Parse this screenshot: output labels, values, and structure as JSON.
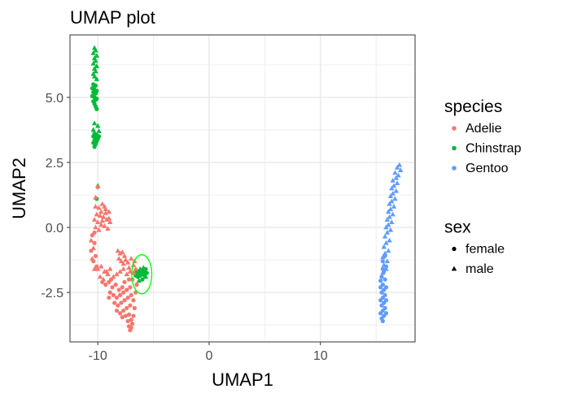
{
  "chart_data": {
    "type": "scatter",
    "title": "UMAP plot",
    "xlabel": "UMAP1",
    "ylabel": "UMAP2",
    "xlim": [
      -12.5,
      18.5
    ],
    "ylim": [
      -4.4,
      7.4
    ],
    "x_ticks": [
      {
        "value": -10,
        "label": "-10"
      },
      {
        "value": 0,
        "label": "0"
      },
      {
        "value": 10,
        "label": "10"
      }
    ],
    "y_ticks": [
      {
        "value": -2.5,
        "label": "-2.5"
      },
      {
        "value": 0,
        "label": "0.0"
      },
      {
        "value": 2.5,
        "label": "2.5"
      },
      {
        "value": 5,
        "label": "5.0"
      }
    ],
    "grid": true,
    "legend_position": "right",
    "colors": {
      "Adelie": "#F8766D",
      "Chinstrap": "#00BA38",
      "Gentoo": "#619CFF"
    },
    "legends": [
      {
        "title": "species",
        "kind": "color",
        "items": [
          "Adelie",
          "Chinstrap",
          "Gentoo"
        ]
      },
      {
        "title": "sex",
        "kind": "shape",
        "items": [
          {
            "label": "female",
            "shape": "circle"
          },
          {
            "label": "male",
            "shape": "triangle"
          }
        ]
      }
    ],
    "series": [
      {
        "species": "Chinstrap",
        "points": [
          [
            -10.3,
            6.9,
            "m"
          ],
          [
            -10.2,
            6.8,
            "m"
          ],
          [
            -10.4,
            6.7,
            "m"
          ],
          [
            -10.1,
            6.6,
            "m"
          ],
          [
            -10.3,
            6.5,
            "m"
          ],
          [
            -10.2,
            6.4,
            "m"
          ],
          [
            -10.4,
            6.3,
            "m"
          ],
          [
            -10.1,
            6.2,
            "m"
          ],
          [
            -10.3,
            6.1,
            "m"
          ],
          [
            -10.2,
            6.0,
            "m"
          ],
          [
            -10.4,
            5.9,
            "m"
          ],
          [
            -10.3,
            5.8,
            "m"
          ],
          [
            -10.1,
            5.7,
            "m"
          ],
          [
            -10.4,
            5.5,
            "f"
          ],
          [
            -10.2,
            5.45,
            "f"
          ],
          [
            -10.5,
            5.35,
            "f"
          ],
          [
            -10.3,
            5.3,
            "f"
          ],
          [
            -10.1,
            5.25,
            "f"
          ],
          [
            -10.4,
            5.2,
            "f"
          ],
          [
            -10.2,
            5.15,
            "f"
          ],
          [
            -10.5,
            5.05,
            "f"
          ],
          [
            -10.3,
            5.0,
            "f"
          ],
          [
            -10.1,
            4.95,
            "f"
          ],
          [
            -10.2,
            4.9,
            "f"
          ],
          [
            -10.4,
            4.85,
            "f"
          ],
          [
            -10.3,
            4.75,
            "f"
          ],
          [
            -10.2,
            4.65,
            "f"
          ],
          [
            -10.1,
            4.55,
            "f"
          ],
          [
            -10.3,
            4.0,
            "m"
          ],
          [
            -10.0,
            3.9,
            "m"
          ],
          [
            -10.4,
            3.75,
            "m"
          ],
          [
            -9.9,
            3.7,
            "m"
          ],
          [
            -10.3,
            3.6,
            "f"
          ],
          [
            -10.1,
            3.55,
            "f"
          ],
          [
            -10.4,
            3.5,
            "f"
          ],
          [
            -9.9,
            3.5,
            "f"
          ],
          [
            -10.2,
            3.45,
            "f"
          ],
          [
            -10.0,
            3.4,
            "f"
          ],
          [
            -10.3,
            3.35,
            "f"
          ],
          [
            -10.1,
            3.3,
            "f"
          ],
          [
            -10.4,
            3.25,
            "f"
          ],
          [
            -10.2,
            3.2,
            "f"
          ],
          [
            -10.3,
            3.1,
            "f"
          ],
          [
            -10.0,
            1.6,
            "m"
          ],
          [
            -10.1,
            1.1,
            "f"
          ],
          [
            -6.5,
            -1.7,
            "f"
          ],
          [
            -6.3,
            -1.75,
            "f"
          ],
          [
            -6.1,
            -1.65,
            "f"
          ],
          [
            -5.9,
            -1.7,
            "f"
          ],
          [
            -6.0,
            -1.8,
            "f"
          ],
          [
            -6.2,
            -1.85,
            "f"
          ],
          [
            -5.8,
            -1.85,
            "f"
          ],
          [
            -5.7,
            -1.6,
            "f"
          ],
          [
            -6.4,
            -1.9,
            "f"
          ],
          [
            -6.6,
            -1.85,
            "f"
          ],
          [
            -5.6,
            -1.75,
            "f"
          ],
          [
            -6.0,
            -2.0,
            "f"
          ],
          [
            -5.9,
            -1.55,
            "m"
          ],
          [
            -6.2,
            -1.6,
            "m"
          ],
          [
            -6.5,
            -1.65,
            "m"
          ],
          [
            -5.7,
            -1.9,
            "m"
          ],
          [
            -6.3,
            -2.05,
            "m"
          ]
        ]
      },
      {
        "species": "Adelie",
        "points": [
          [
            -10.0,
            1.55,
            "f"
          ],
          [
            -10.2,
            1.15,
            "m"
          ],
          [
            -10.2,
            0.8,
            "m"
          ],
          [
            -9.9,
            0.75,
            "m"
          ],
          [
            -9.6,
            0.9,
            "m"
          ],
          [
            -9.3,
            0.7,
            "m"
          ],
          [
            -9.0,
            0.6,
            "m"
          ],
          [
            -10.1,
            0.5,
            "m"
          ],
          [
            -9.8,
            0.45,
            "m"
          ],
          [
            -9.5,
            0.4,
            "m"
          ],
          [
            -9.2,
            0.3,
            "m"
          ],
          [
            -8.9,
            0.2,
            "m"
          ],
          [
            -10.3,
            0.3,
            "m"
          ],
          [
            -10.0,
            0.2,
            "m"
          ],
          [
            -9.7,
            0.1,
            "m"
          ],
          [
            -9.4,
            0.05,
            "m"
          ],
          [
            -9.1,
            -0.05,
            "m"
          ],
          [
            -10.2,
            0.0,
            "m"
          ],
          [
            -9.9,
            -0.1,
            "m"
          ],
          [
            -9.6,
            0.25,
            "m"
          ],
          [
            -9.3,
            0.55,
            "m"
          ],
          [
            -9.0,
            0.35,
            "m"
          ],
          [
            -9.4,
            0.8,
            "m"
          ],
          [
            -9.7,
            0.6,
            "m"
          ],
          [
            -10.5,
            -0.3,
            "f"
          ],
          [
            -10.3,
            -0.6,
            "f"
          ],
          [
            -10.6,
            -0.9,
            "f"
          ],
          [
            -10.2,
            -1.1,
            "f"
          ],
          [
            -10.4,
            -1.3,
            "f"
          ],
          [
            -10.1,
            -1.5,
            "f"
          ],
          [
            -10.3,
            -0.2,
            "f"
          ],
          [
            -10.6,
            -0.5,
            "m"
          ],
          [
            -10.4,
            -0.8,
            "m"
          ],
          [
            -10.5,
            -1.2,
            "m"
          ],
          [
            -10.3,
            -1.6,
            "m"
          ],
          [
            -10.0,
            -1.6,
            "m"
          ],
          [
            -9.7,
            -1.5,
            "m"
          ],
          [
            -9.4,
            -1.7,
            "m"
          ],
          [
            -9.1,
            -1.8,
            "m"
          ],
          [
            -9.8,
            -1.9,
            "m"
          ],
          [
            -9.5,
            -2.0,
            "m"
          ],
          [
            -9.2,
            -1.7,
            "m"
          ],
          [
            -8.9,
            -1.6,
            "m"
          ],
          [
            -8.6,
            -1.9,
            "m"
          ],
          [
            -8.3,
            -1.8,
            "m"
          ],
          [
            -8.0,
            -1.7,
            "m"
          ],
          [
            -7.7,
            -1.6,
            "m"
          ],
          [
            -7.4,
            -1.8,
            "m"
          ],
          [
            -7.1,
            -1.7,
            "m"
          ],
          [
            -6.8,
            -1.75,
            "m"
          ],
          [
            -8.2,
            -0.9,
            "m"
          ],
          [
            -8.0,
            -1.0,
            "m"
          ],
          [
            -7.8,
            -0.95,
            "m"
          ],
          [
            -7.6,
            -1.1,
            "m"
          ],
          [
            -8.1,
            -1.2,
            "m"
          ],
          [
            -7.9,
            -1.3,
            "m"
          ],
          [
            -7.5,
            -1.25,
            "m"
          ],
          [
            -7.7,
            -1.4,
            "m"
          ],
          [
            -7.3,
            -1.35,
            "m"
          ],
          [
            -7.0,
            -1.2,
            "m"
          ],
          [
            -6.8,
            -1.45,
            "m"
          ],
          [
            -7.2,
            -1.55,
            "m"
          ],
          [
            -6.7,
            -1.3,
            "m"
          ],
          [
            -6.6,
            -1.6,
            "m"
          ],
          [
            -9.6,
            -2.1,
            "f"
          ],
          [
            -9.3,
            -2.2,
            "f"
          ],
          [
            -9.0,
            -2.1,
            "f"
          ],
          [
            -8.7,
            -2.3,
            "f"
          ],
          [
            -8.4,
            -2.2,
            "f"
          ],
          [
            -8.1,
            -2.4,
            "f"
          ],
          [
            -7.8,
            -2.3,
            "f"
          ],
          [
            -8.9,
            -2.5,
            "f"
          ],
          [
            -8.6,
            -2.6,
            "f"
          ],
          [
            -8.3,
            -2.7,
            "f"
          ],
          [
            -8.0,
            -2.6,
            "f"
          ],
          [
            -7.7,
            -2.5,
            "f"
          ],
          [
            -7.4,
            -2.4,
            "f"
          ],
          [
            -7.1,
            -2.3,
            "f"
          ],
          [
            -8.5,
            -2.9,
            "f"
          ],
          [
            -8.2,
            -3.0,
            "f"
          ],
          [
            -7.9,
            -2.9,
            "f"
          ],
          [
            -7.6,
            -2.8,
            "f"
          ],
          [
            -7.3,
            -2.7,
            "f"
          ],
          [
            -7.0,
            -2.6,
            "f"
          ],
          [
            -8.3,
            -3.2,
            "f"
          ],
          [
            -8.0,
            -3.3,
            "f"
          ],
          [
            -7.7,
            -3.2,
            "f"
          ],
          [
            -7.4,
            -3.1,
            "f"
          ],
          [
            -7.1,
            -3.0,
            "f"
          ],
          [
            -6.8,
            -2.8,
            "f"
          ],
          [
            -6.6,
            -2.5,
            "f"
          ],
          [
            -6.5,
            -2.2,
            "f"
          ],
          [
            -7.5,
            -3.4,
            "f"
          ],
          [
            -7.2,
            -3.35,
            "f"
          ],
          [
            -7.8,
            -3.45,
            "f"
          ],
          [
            -7.3,
            -3.6,
            "f"
          ],
          [
            -7.0,
            -3.55,
            "f"
          ],
          [
            -7.2,
            -3.8,
            "f"
          ],
          [
            -7.0,
            -3.85,
            "f"
          ],
          [
            -6.9,
            -3.7,
            "f"
          ],
          [
            -7.1,
            -3.95,
            "f"
          ],
          [
            -6.8,
            -3.4,
            "f"
          ],
          [
            -6.7,
            -3.1,
            "f"
          ],
          [
            -6.9,
            -2.0,
            "f"
          ],
          [
            -7.2,
            -2.0,
            "f"
          ],
          [
            -7.6,
            -2.1,
            "f"
          ],
          [
            -9.0,
            -2.7,
            "f"
          ],
          [
            -8.8,
            -2.0,
            "f"
          ]
        ]
      },
      {
        "species": "Gentoo",
        "points": [
          [
            17.1,
            2.4,
            "m"
          ],
          [
            16.9,
            2.3,
            "m"
          ],
          [
            17.2,
            2.2,
            "m"
          ],
          [
            16.7,
            2.1,
            "m"
          ],
          [
            17.0,
            2.0,
            "m"
          ],
          [
            16.8,
            1.9,
            "m"
          ],
          [
            16.5,
            1.8,
            "m"
          ],
          [
            16.9,
            1.7,
            "m"
          ],
          [
            16.6,
            1.6,
            "m"
          ],
          [
            16.4,
            1.5,
            "m"
          ],
          [
            16.8,
            1.4,
            "m"
          ],
          [
            16.5,
            1.3,
            "m"
          ],
          [
            16.3,
            1.2,
            "m"
          ],
          [
            16.7,
            1.1,
            "m"
          ],
          [
            16.4,
            1.0,
            "m"
          ],
          [
            16.2,
            0.9,
            "m"
          ],
          [
            16.6,
            0.8,
            "m"
          ],
          [
            16.3,
            0.7,
            "m"
          ],
          [
            16.1,
            0.6,
            "m"
          ],
          [
            16.5,
            0.5,
            "m"
          ],
          [
            16.2,
            0.4,
            "m"
          ],
          [
            16.0,
            0.3,
            "m"
          ],
          [
            16.4,
            0.2,
            "m"
          ],
          [
            16.1,
            0.1,
            "m"
          ],
          [
            15.9,
            0.0,
            "m"
          ],
          [
            16.3,
            -0.1,
            "m"
          ],
          [
            16.0,
            -0.2,
            "m"
          ],
          [
            15.8,
            -0.35,
            "m"
          ],
          [
            16.2,
            -0.5,
            "m"
          ],
          [
            15.9,
            -0.6,
            "m"
          ],
          [
            15.7,
            -0.75,
            "m"
          ],
          [
            16.1,
            -0.9,
            "m"
          ],
          [
            15.8,
            -1.0,
            "m"
          ],
          [
            15.6,
            -1.15,
            "m"
          ],
          [
            16.0,
            -1.3,
            "m"
          ],
          [
            15.7,
            -1.45,
            "m"
          ],
          [
            15.9,
            -1.6,
            "m"
          ],
          [
            15.6,
            -1.75,
            "m"
          ],
          [
            15.8,
            -1.1,
            "f"
          ],
          [
            15.6,
            -1.3,
            "f"
          ],
          [
            15.9,
            -1.5,
            "f"
          ],
          [
            15.7,
            -1.7,
            "f"
          ],
          [
            15.5,
            -1.9,
            "f"
          ],
          [
            15.8,
            -2.0,
            "f"
          ],
          [
            15.6,
            -2.2,
            "f"
          ],
          [
            15.4,
            -2.3,
            "f"
          ],
          [
            15.7,
            -2.4,
            "f"
          ],
          [
            15.5,
            -2.5,
            "f"
          ],
          [
            15.8,
            -2.6,
            "f"
          ],
          [
            15.6,
            -2.7,
            "f"
          ],
          [
            15.4,
            -2.8,
            "f"
          ],
          [
            15.7,
            -2.9,
            "f"
          ],
          [
            15.5,
            -3.0,
            "f"
          ],
          [
            15.8,
            -3.1,
            "f"
          ],
          [
            15.6,
            -3.2,
            "f"
          ],
          [
            15.4,
            -3.3,
            "f"
          ],
          [
            15.7,
            -3.4,
            "f"
          ],
          [
            15.5,
            -3.5,
            "f"
          ],
          [
            15.6,
            -3.6,
            "f"
          ],
          [
            15.9,
            -2.3,
            "f"
          ],
          [
            15.9,
            -2.8,
            "f"
          ],
          [
            15.4,
            -2.05,
            "f"
          ],
          [
            15.9,
            -3.3,
            "f"
          ],
          [
            15.6,
            -1.6,
            "f"
          ]
        ]
      }
    ],
    "annotations": [
      {
        "type": "ellipse",
        "cx": -6.05,
        "cy": -1.8,
        "rx": 0.9,
        "ry": 0.75,
        "color": "#00FF00"
      }
    ]
  }
}
